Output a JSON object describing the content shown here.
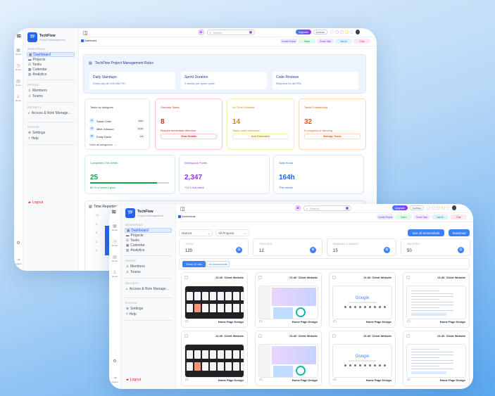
{
  "colors": {
    "accent": "#2563eb",
    "danger": "#dc2626",
    "warning": "#ca8a04",
    "orange": "#ea580c",
    "success": "#16a34a",
    "purple": "#9333ea"
  },
  "brand": {
    "initials": "TF",
    "name": "TechFlow",
    "subtitle": "Project Management"
  },
  "rail": {
    "items": [
      {
        "icon": "grid-icon",
        "label": "Home"
      },
      {
        "icon": "clock-icon",
        "label": "Home"
      },
      {
        "icon": "file-icon",
        "label": "Home"
      },
      {
        "icon": "users-icon",
        "label": "Home"
      }
    ],
    "logout": "Logout"
  },
  "sidebar": {
    "workspace": "Workspace",
    "people": "People",
    "security": "Security",
    "system": "System",
    "workspace_items": [
      "Dashboard",
      "Projects",
      "Tasks",
      "Calendar",
      "Analytics"
    ],
    "people_items": [
      "Members",
      "Teams"
    ],
    "security_items": [
      "Access & Role Manage..."
    ],
    "system_items": [
      "Settings",
      "Help"
    ],
    "logout": "Logout"
  },
  "header": {
    "search_placeholder": "Search",
    "upgrade": "Upgrade",
    "workspace": "TechFlow",
    "actions": [
      {
        "label": "Create Project",
        "bg": "#ede9fe",
        "fg": "#7c3aed"
      },
      {
        "label": "Share",
        "bg": "#dcfce7",
        "fg": "#16a34a"
      },
      {
        "label": "Smart Task",
        "bg": "#f3e8ff",
        "fg": "#9333ea"
      },
      {
        "label": "Ask AI",
        "bg": "#e0f2fe",
        "fg": "#0284c7"
      },
      {
        "label": "Chat",
        "bg": "#fce7f3",
        "fg": "#db2777"
      }
    ]
  },
  "dashboard": {
    "breadcrumb": "Dashboard",
    "rules": {
      "title": "TechFlow Project Management Rules",
      "items": [
        {
          "title": "Daily Standups",
          "desc": "Every day at 9:00 AM PST"
        },
        {
          "title": "Sprint Duration",
          "desc": "2 weeks per sprint cycle"
        },
        {
          "title": "Code Reviews",
          "desc": "Required for all PRs"
        }
      ]
    },
    "assignees": {
      "title": "Tasks by Assignee",
      "people": [
        {
          "initials": "SC",
          "name": "Sarah Chen",
          "count": "8/12"
        },
        {
          "initials": "MJ",
          "name": "Mike Johnson",
          "count": "11/15"
        },
        {
          "initials": "ED",
          "name": "Emily Davis",
          "count": "7/9"
        }
      ],
      "link": "View all assignees →"
    },
    "alerts": [
      {
        "title": "Overdue Tasks",
        "value": "8",
        "desc": "Require immediate attention",
        "button": "View Details",
        "color": "#dc2626",
        "border": "#fbcaca"
      },
      {
        "title": "No Time Estimate",
        "value": "14",
        "desc": "Tasks need estimation",
        "button": "Add Estimates",
        "color": "#ca8a04",
        "border": "#fbecb0"
      },
      {
        "title": "Tasks Outstanding",
        "value": "32",
        "desc": "In progress or pending",
        "button": "Manage Tasks",
        "color": "#ea580c",
        "border": "#fdd9bf"
      }
    ],
    "metrics": [
      {
        "title": "Completed This Week",
        "value": "25",
        "desc": "85 % of week's goal",
        "color": "#16a34a",
        "border": "#d1f5dc",
        "progress": 85
      },
      {
        "title": "Workspace Points",
        "value": "2,347",
        "desc": "+12.1 this week",
        "color": "#9333ea",
        "border": "#e5e7eb"
      },
      {
        "title": "Total Hours",
        "value": "164h",
        "desc": "This month",
        "color": "#2563eb",
        "border": "#dbe7fb"
      }
    ],
    "time_reporting": {
      "title": "Time Reporting",
      "y_ticks": [
        "12",
        "9",
        "6",
        "3",
        "0"
      ]
    }
  },
  "screenshots": {
    "breadcrumb": "Screenshots",
    "user_filter": "Hamza",
    "project_filter": "All Projects",
    "see_all": "See All Screenshots",
    "download": "Download",
    "stats": [
      {
        "label": "Total",
        "value": "120"
      },
      {
        "label": "Tracked",
        "value": "12"
      },
      {
        "label": "Manually Added",
        "value": "15"
      },
      {
        "label": "Deleted",
        "value": "50"
      }
    ],
    "tabs": [
      {
        "label": "Every 10 min",
        "active": true
      },
      {
        "label": "All Screenshots",
        "active": false
      }
    ],
    "cards": [
      {
        "time": "21:40",
        "project": "Client Website",
        "task": "Home Page Design",
        "style": "dark"
      },
      {
        "time": "21:40",
        "project": "Client Website",
        "task": "Home Page Design",
        "style": "purple"
      },
      {
        "time": "21:40",
        "project": "Client Website",
        "task": "Home Page Design",
        "style": "google"
      },
      {
        "time": "21:40",
        "project": "Client Website",
        "task": "Home Page Design",
        "style": "doc"
      },
      {
        "time": "21:40",
        "project": "Client Website",
        "task": "Home Page Design",
        "style": "dark"
      },
      {
        "time": "21:40",
        "project": "Client Website",
        "task": "Home Page Design",
        "style": "purple"
      },
      {
        "time": "21:40",
        "project": "Client Website",
        "task": "Home Page Design",
        "style": "google"
      },
      {
        "time": "21:40",
        "project": "Client Website",
        "task": "Home Page Design",
        "style": "doc"
      }
    ]
  }
}
